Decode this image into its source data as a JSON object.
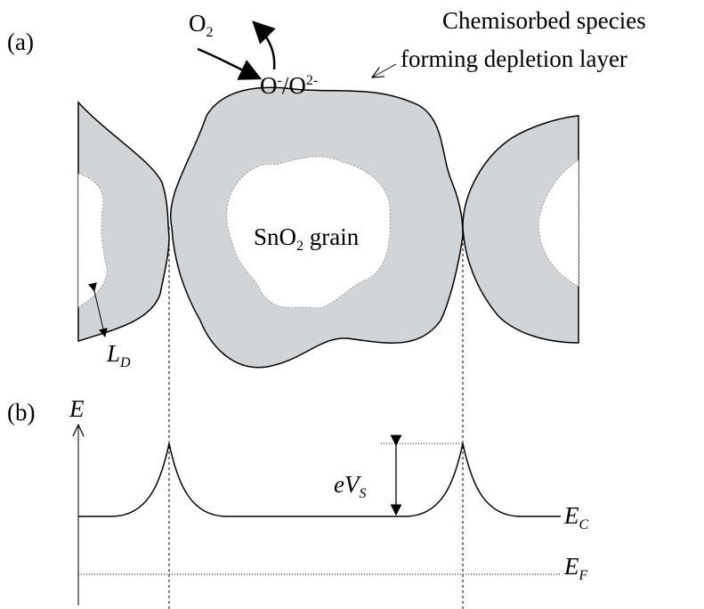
{
  "panel_a": {
    "label": "(a)",
    "o2": {
      "base": "O",
      "sub": "2"
    },
    "adsorbed": {
      "o_minus": "O",
      "minus": "-",
      "slash": "/O",
      "two_minus": "2-"
    },
    "annotation": [
      "Chemisorbed species",
      "forming depletion layer"
    ],
    "grain": {
      "base": "SnO",
      "sub": "2",
      "rest": " grain"
    },
    "debye_length": {
      "base": "L",
      "sub": "D"
    }
  },
  "panel_b": {
    "label": "(b)",
    "axis": "E",
    "barrier": {
      "base": "eV",
      "sub": "S"
    },
    "conduction_band": {
      "base": "E",
      "sub": "C"
    },
    "fermi_level": {
      "base": "E",
      "sub": "F"
    }
  }
}
